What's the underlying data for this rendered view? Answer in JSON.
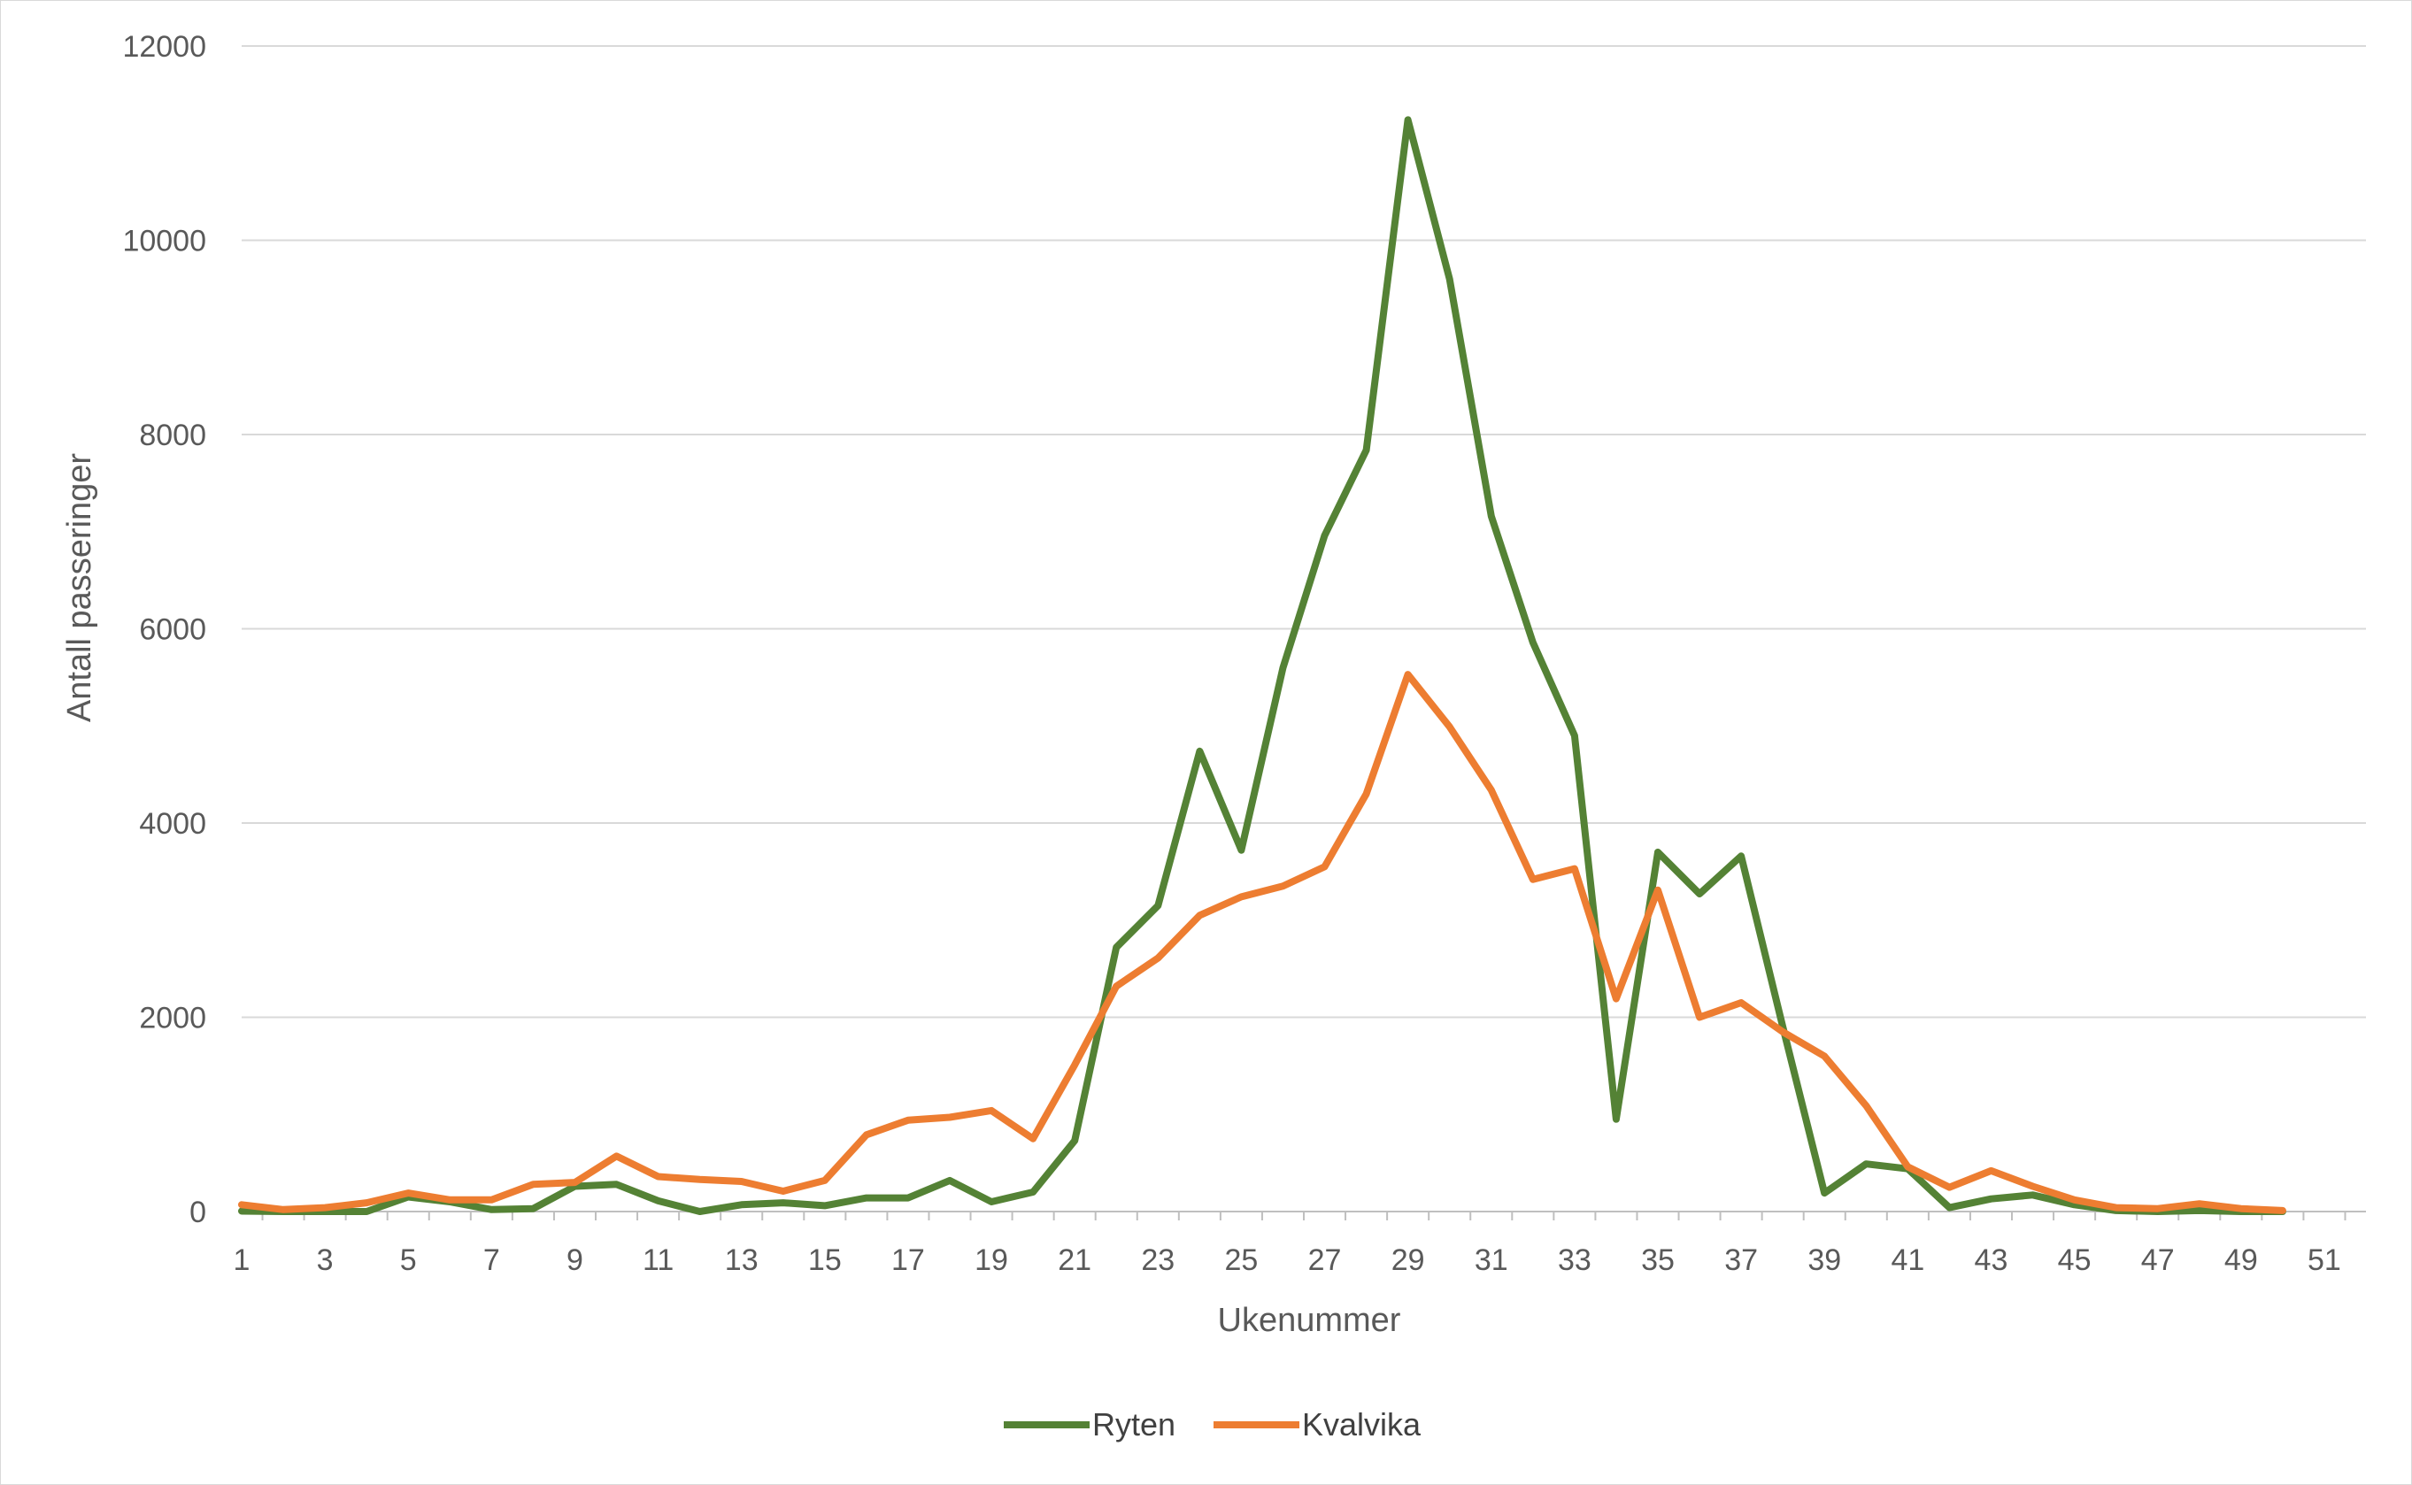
{
  "chart_data": {
    "type": "line",
    "title": "",
    "xlabel": "Ukenummer",
    "ylabel": "Antall passeringer",
    "ylim": [
      0,
      12000
    ],
    "yticks": [
      0,
      2000,
      4000,
      6000,
      8000,
      10000,
      12000
    ],
    "xlim": [
      1,
      52
    ],
    "xticks": [
      1,
      3,
      5,
      7,
      9,
      11,
      13,
      15,
      17,
      19,
      21,
      23,
      25,
      27,
      29,
      31,
      33,
      35,
      37,
      39,
      41,
      43,
      45,
      47,
      49,
      51
    ],
    "grid": "horizontal",
    "legend_position": "bottom",
    "x": [
      1,
      2,
      3,
      4,
      5,
      6,
      7,
      8,
      9,
      10,
      11,
      12,
      13,
      14,
      15,
      16,
      17,
      18,
      19,
      20,
      21,
      22,
      23,
      24,
      25,
      26,
      27,
      28,
      29,
      30,
      31,
      32,
      33,
      34,
      35,
      36,
      37,
      38,
      39,
      40,
      41,
      42,
      43,
      44,
      45,
      46,
      47,
      48,
      49,
      50
    ],
    "series": [
      {
        "name": "Ryten",
        "color": "#548235",
        "values": [
          5,
          0,
          0,
          0,
          150,
          100,
          20,
          30,
          260,
          280,
          110,
          0,
          70,
          90,
          60,
          140,
          140,
          320,
          100,
          200,
          730,
          2720,
          3150,
          4740,
          3720,
          5600,
          6960,
          7840,
          11240,
          9600,
          7160,
          5860,
          4900,
          950,
          3700,
          3270,
          3660,
          1900,
          190,
          490,
          440,
          40,
          130,
          170,
          70,
          10,
          0,
          10,
          0,
          0
        ]
      },
      {
        "name": "Kvalvika",
        "color": "#ED7D31",
        "values": [
          70,
          20,
          40,
          90,
          190,
          120,
          120,
          280,
          300,
          570,
          360,
          330,
          310,
          210,
          320,
          790,
          940,
          970,
          1040,
          750,
          1510,
          2320,
          2610,
          3050,
          3240,
          3350,
          3550,
          4300,
          5530,
          4990,
          4340,
          3420,
          3530,
          2190,
          3310,
          2000,
          2150,
          1850,
          1600,
          1090,
          460,
          250,
          420,
          260,
          120,
          40,
          30,
          80,
          30,
          10
        ]
      }
    ]
  }
}
